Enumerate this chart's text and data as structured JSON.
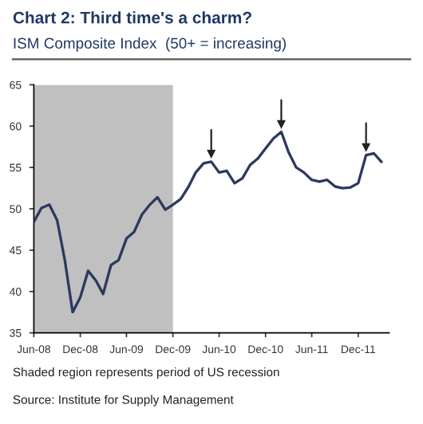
{
  "chart_data": {
    "type": "line",
    "title": "Chart 2: Third time's a charm?",
    "subtitle": "ISM Composite Index  (50+ = increasing)",
    "x": [
      "2008-06",
      "2008-07",
      "2008-08",
      "2008-09",
      "2008-10",
      "2008-11",
      "2008-12",
      "2009-01",
      "2009-02",
      "2009-03",
      "2009-04",
      "2009-05",
      "2009-06",
      "2009-07",
      "2009-08",
      "2009-09",
      "2009-10",
      "2009-11",
      "2009-12",
      "2010-01",
      "2010-02",
      "2010-03",
      "2010-04",
      "2010-05",
      "2010-06",
      "2010-07",
      "2010-08",
      "2010-09",
      "2010-10",
      "2010-11",
      "2010-12",
      "2011-01",
      "2011-02",
      "2011-03",
      "2011-04",
      "2011-05",
      "2011-06",
      "2011-07",
      "2011-08",
      "2011-09",
      "2011-10",
      "2011-11",
      "2011-12",
      "2012-01",
      "2012-02",
      "2012-03"
    ],
    "series": [
      {
        "color": "#2b3a5c",
        "values": [
          48.4,
          50.1,
          50.5,
          48.6,
          43.8,
          37.5,
          39.3,
          42.5,
          41.3,
          39.7,
          43.2,
          43.8,
          46.4,
          47.2,
          49.3,
          50.5,
          51.4,
          49.9,
          50.5,
          51.2,
          52.7,
          54.4,
          55.5,
          55.7,
          54.4,
          54.6,
          53.1,
          53.7,
          55.3,
          56.1,
          57.3,
          58.5,
          59.3,
          56.9,
          55.0,
          54.4,
          53.5,
          53.3,
          53.5,
          52.7,
          52.5,
          52.6,
          53.1,
          56.5,
          56.7,
          55.7
        ]
      },
      {
        "type": "scatter",
        "marker": "triangle",
        "color": "#222222",
        "x": [
          "2010-05",
          "2011-02",
          "2012-01"
        ],
        "values": [
          56.6,
          60.2,
          57.4
        ]
      }
    ],
    "xlim": [
      "2008-06",
      "2012-04"
    ],
    "xticks": [
      {
        "value": "2008-06",
        "label": "Jun-08"
      },
      {
        "value": "2008-12",
        "label": "Dec-08"
      },
      {
        "value": "2009-06",
        "label": "Jun-09"
      },
      {
        "value": "2009-12",
        "label": "Dec-09"
      },
      {
        "value": "2010-06",
        "label": "Jun-10"
      },
      {
        "value": "2010-12",
        "label": "Dec-10"
      },
      {
        "value": "2011-06",
        "label": "Jun-11"
      },
      {
        "value": "2011-12",
        "label": "Dec-11"
      }
    ],
    "ylim": [
      35,
      65
    ],
    "yticks": [
      35,
      40,
      45,
      50,
      55,
      60,
      65
    ],
    "bands": [
      {
        "axis": "x",
        "from": "2008-06",
        "to": "2009-12",
        "color": "#c0c0c0"
      }
    ],
    "annotations": [
      "Shaded region represents period of US recession",
      "Source: Institute for Supply Management"
    ],
    "grid": false,
    "marker": "none",
    "line_style": "solid"
  }
}
